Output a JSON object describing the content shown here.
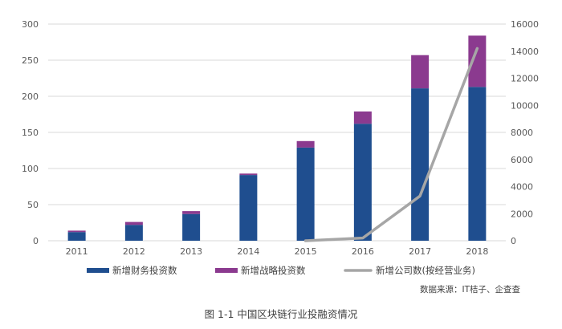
{
  "chart_data": {
    "type": "bar",
    "categories": [
      "2011",
      "2012",
      "2013",
      "2014",
      "2015",
      "2016",
      "2017",
      "2018"
    ],
    "series": [
      {
        "name": "新增财务投资数",
        "chart": "stacked-bar",
        "axis": "left",
        "color": "#1F4E8F",
        "values": [
          12,
          22,
          37,
          91,
          129,
          162,
          211,
          213
        ]
      },
      {
        "name": "新增战略投资数",
        "chart": "stacked-bar",
        "axis": "left",
        "color": "#8B3A8F",
        "values": [
          2,
          4,
          4,
          2,
          9,
          17,
          46,
          71
        ]
      },
      {
        "name": "新增公司数(按经营业务)",
        "chart": "line",
        "axis": "right",
        "color": "#A6A6A6",
        "values": [
          null,
          null,
          null,
          null,
          0,
          200,
          3300,
          14200
        ]
      }
    ],
    "y_left": {
      "range": [
        0,
        300
      ],
      "ticks": [
        "0",
        "50",
        "100",
        "150",
        "200",
        "250",
        "300"
      ]
    },
    "y_right": {
      "range": [
        0,
        16000
      ],
      "ticks": [
        "0",
        "2000",
        "4000",
        "6000",
        "8000",
        "10000",
        "12000",
        "14000",
        "16000"
      ]
    },
    "grid": true,
    "legend_position": "bottom",
    "source_note": "数据来源：IT桔子、企查查",
    "caption": "图 1-1  中国区块链行业投融资情况"
  }
}
